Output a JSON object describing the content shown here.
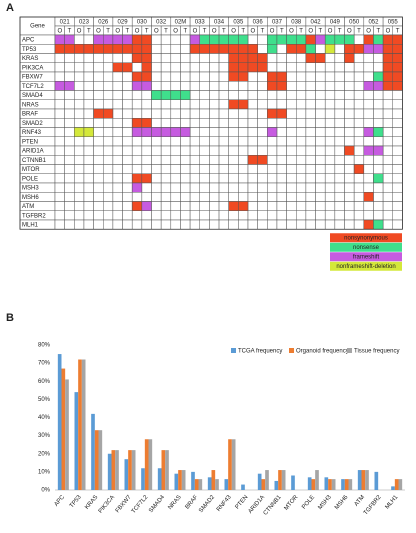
{
  "panel_labels": [
    "A",
    "B"
  ],
  "heatmap": {
    "gene_header": "Gene",
    "patients": [
      "021",
      "023",
      "026",
      "029",
      "030",
      "032",
      "02M",
      "033",
      "034",
      "035",
      "036",
      "037",
      "038",
      "042",
      "049",
      "050",
      "052",
      "055"
    ],
    "subcolumns": [
      "O",
      "T"
    ],
    "genes": [
      "APC",
      "TP53",
      "KRAS",
      "PIK3CA",
      "FBXW7",
      "TCF7L2",
      "SMAD4",
      "NRAS",
      "BRAF",
      "SMAD2",
      "RNF43",
      "PTEN",
      "ARID1A",
      "CTNNB1",
      "MTOR",
      "POLE",
      "MSH3",
      "MSH6",
      "ATM",
      "TGFBR2",
      "MLH1"
    ],
    "mutations": [
      [
        [
          0,
          2
        ],
        [
          1,
          2
        ],
        [
          4,
          2
        ],
        [
          5,
          2
        ],
        [
          6,
          2
        ],
        [
          7,
          2
        ],
        [
          8,
          0
        ],
        [
          9,
          0
        ],
        [
          14,
          2
        ],
        [
          15,
          1
        ],
        [
          16,
          1
        ],
        [
          17,
          1
        ],
        [
          18,
          1
        ],
        [
          19,
          1
        ],
        [
          22,
          1
        ],
        [
          23,
          1
        ],
        [
          24,
          1
        ],
        [
          25,
          1
        ],
        [
          26,
          0
        ],
        [
          27,
          2
        ],
        [
          28,
          1
        ],
        [
          29,
          1
        ],
        [
          30,
          1
        ],
        [
          32,
          0
        ],
        [
          33,
          1
        ],
        [
          34,
          0
        ],
        [
          35,
          0
        ]
      ],
      [
        [
          0,
          0
        ],
        [
          1,
          0
        ],
        [
          2,
          0
        ],
        [
          3,
          0
        ],
        [
          4,
          0
        ],
        [
          5,
          0
        ],
        [
          6,
          0
        ],
        [
          7,
          0
        ],
        [
          8,
          0
        ],
        [
          9,
          0
        ],
        [
          14,
          0
        ],
        [
          15,
          0
        ],
        [
          16,
          0
        ],
        [
          17,
          0
        ],
        [
          18,
          0
        ],
        [
          19,
          0
        ],
        [
          20,
          0
        ],
        [
          22,
          1
        ],
        [
          24,
          0
        ],
        [
          25,
          0
        ],
        [
          26,
          1
        ],
        [
          28,
          3
        ],
        [
          30,
          0
        ],
        [
          31,
          0
        ],
        [
          32,
          2
        ],
        [
          33,
          2
        ],
        [
          34,
          0
        ],
        [
          35,
          0
        ]
      ],
      [
        [
          8,
          0
        ],
        [
          9,
          0
        ],
        [
          18,
          0
        ],
        [
          19,
          0
        ],
        [
          20,
          0
        ],
        [
          21,
          0
        ],
        [
          26,
          0
        ],
        [
          27,
          0
        ],
        [
          30,
          0
        ],
        [
          34,
          0
        ],
        [
          35,
          0
        ]
      ],
      [
        [
          6,
          0
        ],
        [
          7,
          0
        ],
        [
          9,
          0
        ],
        [
          18,
          0
        ],
        [
          19,
          0
        ],
        [
          20,
          0
        ],
        [
          21,
          0
        ],
        [
          34,
          0
        ],
        [
          35,
          0
        ]
      ],
      [
        [
          8,
          0
        ],
        [
          9,
          0
        ],
        [
          18,
          0
        ],
        [
          19,
          0
        ],
        [
          22,
          0
        ],
        [
          23,
          0
        ],
        [
          33,
          1
        ],
        [
          34,
          0
        ],
        [
          35,
          0
        ]
      ],
      [
        [
          0,
          2
        ],
        [
          1,
          2
        ],
        [
          8,
          2
        ],
        [
          9,
          2
        ],
        [
          22,
          0
        ],
        [
          23,
          0
        ],
        [
          32,
          2
        ],
        [
          33,
          2
        ],
        [
          34,
          0
        ],
        [
          35,
          0
        ]
      ],
      [
        [
          10,
          1
        ],
        [
          11,
          1
        ],
        [
          12,
          1
        ],
        [
          13,
          1
        ]
      ],
      [
        [
          18,
          0
        ],
        [
          19,
          0
        ]
      ],
      [
        [
          4,
          0
        ],
        [
          5,
          0
        ],
        [
          22,
          0
        ],
        [
          23,
          0
        ]
      ],
      [
        [
          8,
          0
        ],
        [
          9,
          0
        ]
      ],
      [
        [
          2,
          3
        ],
        [
          3,
          3
        ],
        [
          8,
          2
        ],
        [
          9,
          2
        ],
        [
          10,
          2
        ],
        [
          11,
          2
        ],
        [
          12,
          2
        ],
        [
          13,
          2
        ],
        [
          22,
          2
        ],
        [
          32,
          2
        ],
        [
          33,
          1
        ]
      ],
      [],
      [
        [
          30,
          0
        ],
        [
          32,
          2
        ],
        [
          33,
          2
        ]
      ],
      [
        [
          20,
          0
        ],
        [
          21,
          0
        ]
      ],
      [
        [
          31,
          0
        ]
      ],
      [
        [
          8,
          0
        ],
        [
          9,
          0
        ],
        [
          33,
          1
        ]
      ],
      [
        [
          8,
          2
        ]
      ],
      [
        [
          32,
          0
        ]
      ],
      [
        [
          8,
          0
        ],
        [
          9,
          2
        ],
        [
          18,
          0
        ],
        [
          19,
          0
        ]
      ],
      [],
      [
        [
          32,
          0
        ],
        [
          33,
          1
        ]
      ]
    ],
    "legend": [
      {
        "label": "nonsynonymous",
        "color": "#f04a23"
      },
      {
        "label": "nonsense",
        "color": "#3fdf8c"
      },
      {
        "label": "frameshift",
        "color": "#c65be0"
      },
      {
        "label": "nonframeshift-deletion",
        "color": "#d4e83a"
      }
    ]
  },
  "chart_data": {
    "type": "bar",
    "categories": [
      "APC",
      "TP53",
      "KRAS",
      "PIK3CA",
      "FBXW7",
      "TCF7L2",
      "SMAD4",
      "NRAS",
      "BRAF",
      "SMAD2",
      "RNF43",
      "PTEN",
      "ARID1A",
      "CTNNB1",
      "MTOR",
      "POLE",
      "MSH3",
      "MSH6",
      "ATM",
      "TGFBR2",
      "MLH1"
    ],
    "series": [
      {
        "name": "TCGA frequency",
        "color": "#5b9bd5",
        "values": [
          75,
          54,
          42,
          20,
          17,
          12,
          12,
          9,
          10,
          7,
          6,
          3,
          9,
          5,
          8,
          7,
          7,
          6,
          11,
          10,
          2
        ]
      },
      {
        "name": "Organoid frequency",
        "color": "#ed7d31",
        "values": [
          67,
          72,
          33,
          22,
          22,
          28,
          22,
          11,
          6,
          11,
          28,
          0,
          6,
          11,
          0,
          6,
          6,
          6,
          11,
          0,
          6
        ]
      },
      {
        "name": "Tissue frequency",
        "color": "#a5a5a5",
        "values": [
          61,
          72,
          33,
          22,
          22,
          28,
          22,
          11,
          6,
          6,
          28,
          0,
          11,
          11,
          0,
          11,
          6,
          6,
          11,
          0,
          6
        ]
      }
    ],
    "ylim": [
      0,
      80
    ],
    "yticks": [
      {
        "value": 0,
        "label": "0%"
      },
      {
        "value": 10,
        "label": "10%"
      },
      {
        "value": 20,
        "label": "20%"
      },
      {
        "value": 30,
        "label": "30%"
      },
      {
        "value": 40,
        "label": "40%"
      },
      {
        "value": 50,
        "label": "50%"
      },
      {
        "value": 60,
        "label": "60%"
      },
      {
        "value": 70,
        "label": "70%"
      },
      {
        "value": 80,
        "label": "80%"
      }
    ],
    "grid": false,
    "legend_position": "top-right"
  }
}
